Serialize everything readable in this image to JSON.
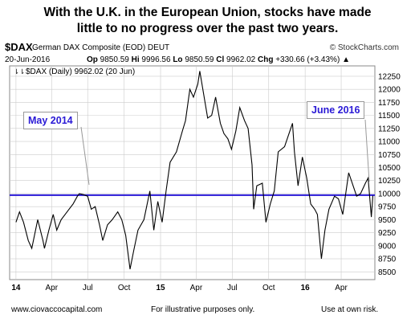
{
  "headline": {
    "line1": "With the U.K. in the European Union, stocks have made",
    "line2": "little to no progress over the past two years."
  },
  "header": {
    "symbol": "$DAX",
    "description": "German DAX Composite (EOD) DEUT",
    "copyright": "© StockCharts.com",
    "date": "20-Jun-2016",
    "open_label": "Op",
    "open": "9850.59",
    "high_label": "Hi",
    "high": "9996.56",
    "low_label": "Lo",
    "low": "9850.59",
    "close_label": "Cl",
    "close": "9962.02",
    "change_label": "Chg",
    "change": "+330.66 (+3.43%)",
    "change_marker": "▲"
  },
  "legend": {
    "label": "$DAX (Daily) 9962.02 (20 Jun)"
  },
  "callouts": {
    "left": "May 2014",
    "right": "June 2016"
  },
  "footer": {
    "left": "www.ciovaccocapital.com",
    "center": "For illustrative purposes only.",
    "right": "Use at own risk."
  },
  "colors": {
    "price_line": "#000000",
    "reference_line": "#2a1ad6",
    "callout_text": "#2a1ad6",
    "grid": "#cccccc"
  },
  "chart_data": {
    "type": "line",
    "title": "",
    "series": [
      {
        "name": "$DAX",
        "points": [
          [
            "2014-01-01",
            9450
          ],
          [
            "2014-01-10",
            9650
          ],
          [
            "2014-01-20",
            9450
          ],
          [
            "2014-02-01",
            9100
          ],
          [
            "2014-02-10",
            8950
          ],
          [
            "2014-02-25",
            9500
          ],
          [
            "2014-03-10",
            9100
          ],
          [
            "2014-03-14",
            8950
          ],
          [
            "2014-03-25",
            9300
          ],
          [
            "2014-04-05",
            9600
          ],
          [
            "2014-04-14",
            9300
          ],
          [
            "2014-04-25",
            9500
          ],
          [
            "2014-05-05",
            9600
          ],
          [
            "2014-05-15",
            9700
          ],
          [
            "2014-05-25",
            9800
          ],
          [
            "2014-06-05",
            9950
          ],
          [
            "2014-06-10",
            10000
          ],
          [
            "2014-06-20",
            9980
          ],
          [
            "2014-07-01",
            9950
          ],
          [
            "2014-07-10",
            9700
          ],
          [
            "2014-07-20",
            9750
          ],
          [
            "2014-07-31",
            9400
          ],
          [
            "2014-08-08",
            9100
          ],
          [
            "2014-08-20",
            9400
          ],
          [
            "2014-09-01",
            9500
          ],
          [
            "2014-09-15",
            9650
          ],
          [
            "2014-09-25",
            9500
          ],
          [
            "2014-10-05",
            9200
          ],
          [
            "2014-10-16",
            8550
          ],
          [
            "2014-10-25",
            8900
          ],
          [
            "2014-11-05",
            9300
          ],
          [
            "2014-11-20",
            9500
          ],
          [
            "2014-12-05",
            10050
          ],
          [
            "2014-12-15",
            9300
          ],
          [
            "2014-12-25",
            9850
          ],
          [
            "2015-01-05",
            9450
          ],
          [
            "2015-01-15",
            10050
          ],
          [
            "2015-01-25",
            10600
          ],
          [
            "2015-02-10",
            10800
          ],
          [
            "2015-02-25",
            11200
          ],
          [
            "2015-03-05",
            11400
          ],
          [
            "2015-03-16",
            12000
          ],
          [
            "2015-03-25",
            11850
          ],
          [
            "2015-04-05",
            12100
          ],
          [
            "2015-04-10",
            12350
          ],
          [
            "2015-04-20",
            11900
          ],
          [
            "2015-04-30",
            11450
          ],
          [
            "2015-05-10",
            11500
          ],
          [
            "2015-05-20",
            11850
          ],
          [
            "2015-06-01",
            11350
          ],
          [
            "2015-06-10",
            11150
          ],
          [
            "2015-06-20",
            11050
          ],
          [
            "2015-06-29",
            10850
          ],
          [
            "2015-07-10",
            11200
          ],
          [
            "2015-07-20",
            11650
          ],
          [
            "2015-08-01",
            11400
          ],
          [
            "2015-08-10",
            11250
          ],
          [
            "2015-08-20",
            10550
          ],
          [
            "2015-08-24",
            9700
          ],
          [
            "2015-09-01",
            10150
          ],
          [
            "2015-09-15",
            10200
          ],
          [
            "2015-09-24",
            9450
          ],
          [
            "2015-10-05",
            9800
          ],
          [
            "2015-10-15",
            10050
          ],
          [
            "2015-10-25",
            10800
          ],
          [
            "2015-11-10",
            10900
          ],
          [
            "2015-11-30",
            11350
          ],
          [
            "2015-12-05",
            10800
          ],
          [
            "2015-12-14",
            10150
          ],
          [
            "2015-12-25",
            10700
          ],
          [
            "2016-01-05",
            10300
          ],
          [
            "2016-01-15",
            9800
          ],
          [
            "2016-01-25",
            9700
          ],
          [
            "2016-02-01",
            9600
          ],
          [
            "2016-02-11",
            8750
          ],
          [
            "2016-02-20",
            9300
          ],
          [
            "2016-03-01",
            9700
          ],
          [
            "2016-03-15",
            9950
          ],
          [
            "2016-03-25",
            9900
          ],
          [
            "2016-04-05",
            9600
          ],
          [
            "2016-04-20",
            10400
          ],
          [
            "2016-05-01",
            10150
          ],
          [
            "2016-05-10",
            9950
          ],
          [
            "2016-05-20",
            10000
          ],
          [
            "2016-06-01",
            10200
          ],
          [
            "2016-06-08",
            10300
          ],
          [
            "2016-06-16",
            9550
          ],
          [
            "2016-06-20",
            9962
          ]
        ]
      }
    ],
    "reference_line": {
      "y": 9970
    },
    "x_ticks": [
      {
        "label": "14",
        "date": "2014-01-01",
        "bold": true
      },
      {
        "label": "Apr",
        "date": "2014-04-01"
      },
      {
        "label": "Jul",
        "date": "2014-07-01"
      },
      {
        "label": "Oct",
        "date": "2014-10-01"
      },
      {
        "label": "15",
        "date": "2015-01-01",
        "bold": true
      },
      {
        "label": "Apr",
        "date": "2015-04-01"
      },
      {
        "label": "Jul",
        "date": "2015-07-01"
      },
      {
        "label": "Oct",
        "date": "2015-10-01"
      },
      {
        "label": "16",
        "date": "2016-01-01",
        "bold": true
      },
      {
        "label": "Apr",
        "date": "2016-04-01"
      }
    ],
    "y_ticks": [
      8500,
      8750,
      9000,
      9250,
      9500,
      9750,
      10000,
      10250,
      10500,
      10750,
      11000,
      11250,
      11500,
      11750,
      12000,
      12250
    ],
    "ylim": [
      8350,
      12450
    ],
    "xlim": [
      "2013-12-16",
      "2016-06-25"
    ],
    "grid": true,
    "y_axis_side": "right"
  }
}
